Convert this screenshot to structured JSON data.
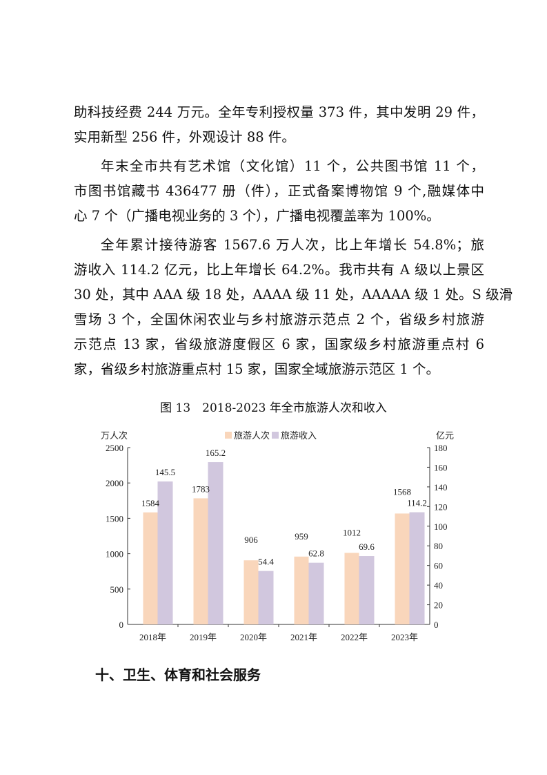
{
  "paragraphs": [
    {
      "lines": [
        "助科技经费 244 万元。全年专利授权量 373 件，其中发明 29 件，",
        "实用新型 256 件，外观设计 88 件。"
      ]
    },
    {
      "lines": [
        "年末全市共有艺术馆（文化馆）11 个，公共图书馆 11 个，",
        "市图书馆藏书 436477 册（件），正式备案博物馆 9 个,融媒体中",
        "心 7 个（广播电视业务的 3 个），广播电视覆盖率为 100%。"
      ]
    },
    {
      "lines": [
        "全年累计接待游客 1567.6 万人次，比上年增长 54.8%；旅",
        "游收入 114.2 亿元，比上年增长 64.2%。我市共有 A 级以上景区",
        "30 处，其中 AAA 级 18 处，AAAA 级 11 处，AAAAA 级 1 处。S 级滑",
        "雪场 3 个，全国休闲农业与乡村旅游示范点 2 个，省级乡村旅游",
        "示范点 13 家，省级旅游度假区 6 家，国家级乡村旅游重点村 6",
        "家，省级乡村旅游重点村 15 家，国家全域旅游示范区 1 个。"
      ]
    }
  ],
  "caption": "图 13　2018-2023 年全市旅游人次和收入",
  "heading": "十、卫生、体育和社会服务",
  "chart_data": {
    "type": "bar",
    "categories": [
      "2018年",
      "2019年",
      "2020年",
      "2021年",
      "2022年",
      "2023年"
    ],
    "series": [
      {
        "name": "旅游人次",
        "axis": "left",
        "color": "#F9D6BB",
        "values": [
          1584,
          1783,
          906,
          959,
          1012,
          1568
        ],
        "labels": [
          "1584",
          "1783",
          "906",
          "959",
          "1012",
          "1568"
        ]
      },
      {
        "name": "旅游收入",
        "axis": "right",
        "color": "#D1C7DE",
        "values": [
          145.5,
          165.2,
          54.4,
          62.8,
          69.6,
          114.2
        ],
        "labels": [
          "145.5",
          "165.2",
          "54.4",
          "62.8",
          "69.6",
          "114.2"
        ]
      }
    ],
    "ylabel": "万人次",
    "ylabel_right": "亿元",
    "ylim": [
      0,
      2500
    ],
    "yticks": [
      "0",
      "500",
      "1000",
      "1500",
      "2000",
      "2500"
    ],
    "ylim_right": [
      0,
      180
    ],
    "yticks_right": [
      "0",
      "20",
      "40",
      "60",
      "80",
      "100",
      "120",
      "140",
      "160",
      "180"
    ],
    "legend": "top-center",
    "grid": false
  }
}
